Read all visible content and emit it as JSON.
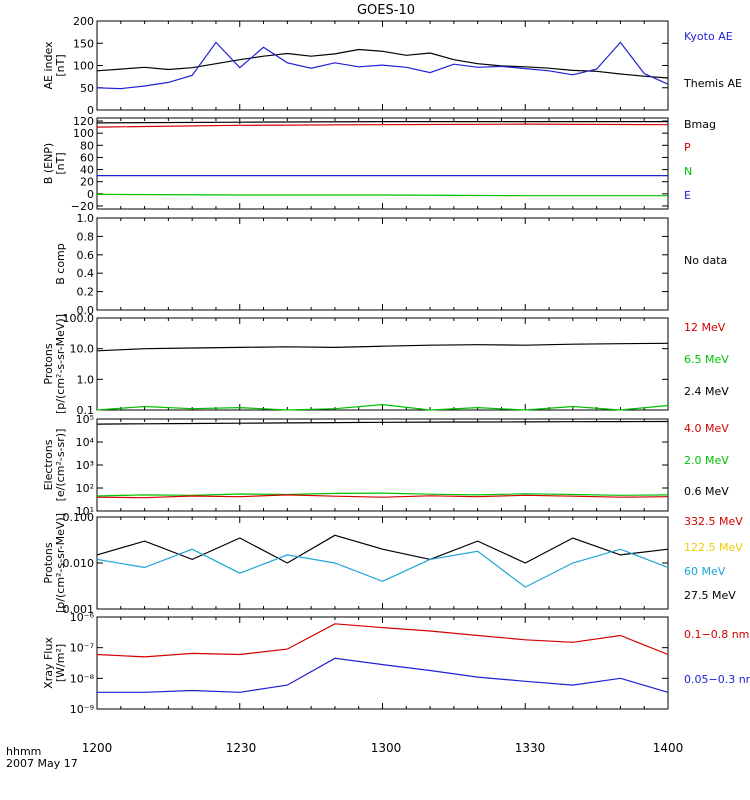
{
  "page": {
    "title": "GOES-10",
    "date_label_1": "hhmm",
    "date_label_2": "2007 May 17"
  },
  "colors": {
    "black": "#000000",
    "blue": "#1f1fd6",
    "red": "#d40000",
    "green": "#00c000",
    "cyan": "#1ea5d8",
    "yellow": "#f0d000"
  },
  "chart_data": [
    {
      "type": "line",
      "panel": "ae",
      "ylabel": [
        "AE index",
        "[nT]"
      ],
      "ylim": [
        0,
        200
      ],
      "yticks": [
        0,
        50,
        100,
        150,
        200
      ],
      "yticklabels": [
        "0",
        "50",
        "100",
        "150",
        "200"
      ],
      "legend": [
        {
          "label": "Kyoto AE",
          "color": "#1f1fd6"
        },
        {
          "label": "Themis AE",
          "color": "#000000"
        }
      ],
      "x": [
        "12:00",
        "12:05",
        "12:10",
        "12:15",
        "12:20",
        "12:25",
        "12:30",
        "12:35",
        "12:40",
        "12:45",
        "12:50",
        "12:55",
        "13:00",
        "13:05",
        "13:10",
        "13:15",
        "13:20",
        "13:25",
        "13:30",
        "13:35",
        "13:40",
        "13:45",
        "13:50",
        "13:55",
        "14:00"
      ],
      "series": [
        {
          "name": "Themis AE",
          "color": "#000000",
          "values": [
            88,
            92,
            96,
            91,
            95,
            104,
            113,
            121,
            127,
            121,
            126,
            136,
            132,
            123,
            128,
            113,
            104,
            99,
            97,
            94,
            89,
            87,
            81,
            76,
            72
          ]
        },
        {
          "name": "Kyoto AE",
          "color": "#1f1fd6",
          "values": [
            50,
            48,
            54,
            62,
            78,
            152,
            95,
            141,
            106,
            94,
            106,
            97,
            101,
            96,
            84,
            103,
            96,
            98,
            93,
            88,
            79,
            92,
            152,
            82,
            58
          ]
        }
      ]
    },
    {
      "type": "line",
      "panel": "bfield",
      "ylabel": [
        "B (ENP)",
        "[nT]"
      ],
      "ylim": [
        -25,
        125
      ],
      "yticks": [
        -20,
        0,
        20,
        40,
        60,
        80,
        100,
        120
      ],
      "yticklabels": [
        "−20",
        "0",
        "20",
        "40",
        "60",
        "80",
        "100",
        "120"
      ],
      "legend": [
        {
          "label": "Bmag",
          "color": "#000000"
        },
        {
          "label": "P",
          "color": "#d40000"
        },
        {
          "label": "N",
          "color": "#00c000"
        },
        {
          "label": "E",
          "color": "#1f1fd6"
        }
      ],
      "x": [
        "12:00",
        "12:30",
        "13:00",
        "13:30",
        "14:00"
      ],
      "series": [
        {
          "name": "Bmag",
          "color": "#000000",
          "values": [
            117,
            118,
            119,
            119,
            119
          ]
        },
        {
          "name": "P",
          "color": "#d40000",
          "values": [
            110,
            113,
            114,
            115,
            114
          ]
        },
        {
          "name": "N",
          "color": "#00c000",
          "values": [
            -1,
            -2,
            -2,
            -3,
            -3
          ]
        },
        {
          "name": "E",
          "color": "#1f1fd6",
          "values": [
            30,
            30,
            30,
            30,
            30
          ]
        }
      ]
    },
    {
      "type": "line",
      "panel": "bcomp",
      "ylabel": [
        "B comp",
        ""
      ],
      "ylim": [
        0,
        1
      ],
      "yticks": [
        0,
        0.2,
        0.4,
        0.6,
        0.8,
        1.0
      ],
      "yticklabels": [
        "0.0",
        "0.2",
        "0.4",
        "0.6",
        "0.8",
        "1.0"
      ],
      "legend": [
        {
          "label": "No data",
          "color": "#000000"
        }
      ],
      "series": []
    },
    {
      "type": "line",
      "panel": "protons1",
      "ylabel": [
        "Protons",
        "[p/(cm²-s-sr-MeV)]"
      ],
      "ylim": [
        0.1,
        100
      ],
      "log": true,
      "yticks": [
        0.1,
        1,
        10,
        100
      ],
      "yticklabels": [
        "0.1",
        "1.0",
        "10.0",
        "100.0"
      ],
      "legend": [
        {
          "label": "12 MeV",
          "color": "#d40000"
        },
        {
          "label": "6.5 MeV",
          "color": "#00c000"
        },
        {
          "label": "2.4 MeV",
          "color": "#000000"
        }
      ],
      "x": [
        "12:00",
        "12:10",
        "12:20",
        "12:30",
        "12:40",
        "12:50",
        "13:00",
        "13:10",
        "13:20",
        "13:30",
        "13:40",
        "13:50",
        "14:00"
      ],
      "series": [
        {
          "name": "2.4 MeV",
          "color": "#000000",
          "values": [
            8.5,
            10,
            10.5,
            11,
            11.5,
            11,
            12,
            13,
            13.5,
            13,
            14,
            14.5,
            15
          ]
        },
        {
          "name": "6.5 MeV",
          "color": "#00c000",
          "values": [
            0.1,
            0.13,
            0.11,
            0.12,
            0.1,
            0.11,
            0.15,
            0.1,
            0.12,
            0.1,
            0.13,
            0.1,
            0.14
          ]
        }
      ]
    },
    {
      "type": "line",
      "panel": "electrons",
      "ylabel": [
        "Electrons",
        "[e/(cm²-s-sr)]"
      ],
      "ylim": [
        10,
        100000
      ],
      "log": true,
      "yticks": [
        10,
        100,
        1000,
        10000,
        100000
      ],
      "yticklabels": [
        "10¹",
        "10²",
        "10³",
        "10⁴",
        "10⁵"
      ],
      "legend": [
        {
          "label": "4.0 MeV",
          "color": "#d40000"
        },
        {
          "label": "2.0 MeV",
          "color": "#00c000"
        },
        {
          "label": "0.6 MeV",
          "color": "#000000"
        }
      ],
      "x": [
        "12:00",
        "12:10",
        "12:20",
        "12:30",
        "12:40",
        "12:50",
        "13:00",
        "13:10",
        "13:20",
        "13:30",
        "13:40",
        "13:50",
        "14:00"
      ],
      "series": [
        {
          "name": "0.6 MeV",
          "color": "#000000",
          "values": [
            60000,
            62000,
            64000,
            66000,
            68000,
            70000,
            72000,
            73000,
            74000,
            75000,
            76000,
            77000,
            78000
          ]
        },
        {
          "name": "2.0 MeV",
          "color": "#00c000",
          "values": [
            45,
            50,
            48,
            55,
            52,
            58,
            60,
            54,
            50,
            56,
            52,
            48,
            50
          ]
        },
        {
          "name": "4.0 MeV",
          "color": "#d40000",
          "values": [
            40,
            38,
            45,
            42,
            50,
            44,
            40,
            46,
            42,
            48,
            44,
            40,
            42
          ]
        }
      ]
    },
    {
      "type": "line",
      "panel": "protons2",
      "ylabel": [
        "Protons",
        "[p/(cm²-s-sr-MeV)]"
      ],
      "ylim": [
        0.001,
        0.1
      ],
      "log": true,
      "yticks": [
        0.001,
        0.01,
        0.1
      ],
      "yticklabels": [
        "0.001",
        "0.010",
        "0.100"
      ],
      "legend": [
        {
          "label": "332.5 MeV",
          "color": "#d40000"
        },
        {
          "label": "122.5 MeV",
          "color": "#f0d000"
        },
        {
          "label": "60 MeV",
          "color": "#1ea5d8"
        },
        {
          "label": "27.5 MeV",
          "color": "#000000"
        }
      ],
      "x": [
        "12:00",
        "12:10",
        "12:20",
        "12:30",
        "12:40",
        "12:50",
        "13:00",
        "13:10",
        "13:20",
        "13:30",
        "13:40",
        "13:50",
        "14:00"
      ],
      "series": [
        {
          "name": "27.5 MeV",
          "color": "#000000",
          "values": [
            0.015,
            0.03,
            0.012,
            0.035,
            0.01,
            0.04,
            0.02,
            0.012,
            0.03,
            0.01,
            0.035,
            0.015,
            0.02
          ]
        },
        {
          "name": "60 MeV",
          "color": "#1ea5d8",
          "values": [
            0.012,
            0.008,
            0.02,
            0.006,
            0.015,
            0.01,
            0.004,
            0.012,
            0.018,
            0.003,
            0.01,
            0.02,
            0.008
          ]
        }
      ]
    },
    {
      "type": "line",
      "panel": "xray",
      "ylabel": [
        "Xray Flux",
        "[W/m²]"
      ],
      "ylim": [
        1e-09,
        1e-06
      ],
      "log": true,
      "yticks": [
        1e-09,
        1e-08,
        1e-07,
        1e-06
      ],
      "yticklabels": [
        "10⁻⁹",
        "10⁻⁸",
        "10⁻⁷",
        "10⁻⁶"
      ],
      "legend": [
        {
          "label": "0.1−0.8 nm",
          "color": "#d40000"
        },
        {
          "label": "0.05−0.3 nm",
          "color": "#1f1fd6"
        }
      ],
      "x": [
        "12:00",
        "12:10",
        "12:20",
        "12:30",
        "12:40",
        "12:50",
        "13:00",
        "13:10",
        "13:20",
        "13:30",
        "13:40",
        "13:50",
        "14:00"
      ],
      "series": [
        {
          "name": "0.1−0.8 nm",
          "color": "#d40000",
          "values": [
            6e-08,
            5e-08,
            6.5e-08,
            6e-08,
            9e-08,
            6e-07,
            4.5e-07,
            3.5e-07,
            2.5e-07,
            1.8e-07,
            1.5e-07,
            2.5e-07,
            6e-08
          ]
        },
        {
          "name": "0.05−0.3 nm",
          "color": "#1f1fd6",
          "values": [
            3.5e-09,
            3.5e-09,
            4e-09,
            3.5e-09,
            6e-09,
            4.5e-08,
            2.8e-08,
            1.8e-08,
            1.1e-08,
            8e-09,
            6e-09,
            1e-08,
            3.5e-09
          ]
        }
      ]
    }
  ],
  "x_axis": {
    "ticklabels": [
      "1200",
      "1230",
      "1300",
      "1330",
      "1400"
    ]
  }
}
